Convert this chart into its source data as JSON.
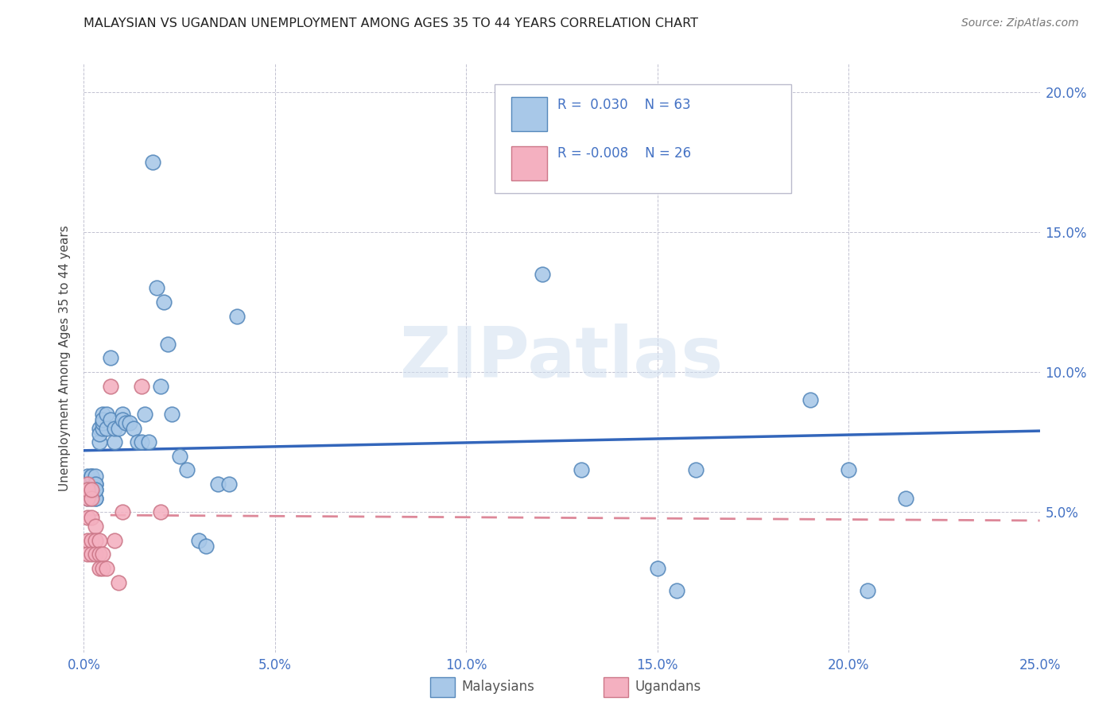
{
  "title": "MALAYSIAN VS UGANDAN UNEMPLOYMENT AMONG AGES 35 TO 44 YEARS CORRELATION CHART",
  "source": "Source: ZipAtlas.com",
  "ylabel": "Unemployment Among Ages 35 to 44 years",
  "xlim": [
    0.0,
    0.25
  ],
  "ylim": [
    0.0,
    0.21
  ],
  "xticks": [
    0.0,
    0.05,
    0.1,
    0.15,
    0.2,
    0.25
  ],
  "yticks": [
    0.0,
    0.05,
    0.1,
    0.15,
    0.2
  ],
  "ytick_labels": [
    "",
    "5.0%",
    "10.0%",
    "15.0%",
    "20.0%"
  ],
  "xtick_labels": [
    "0.0%",
    "5.0%",
    "10.0%",
    "15.0%",
    "20.0%",
    "25.0%"
  ],
  "malaysia_color": "#a8c8e8",
  "malaysia_edge": "#5588bb",
  "uganda_color": "#f4b0c0",
  "uganda_edge": "#cc7788",
  "blue_text": "#4472c4",
  "trend_blue": "#3366bb",
  "trend_pink": "#dd8899",
  "watermark_color": "#d0dff0",
  "malaysia_x": [
    0.001,
    0.001,
    0.001,
    0.001,
    0.002,
    0.002,
    0.002,
    0.002,
    0.002,
    0.002,
    0.002,
    0.003,
    0.003,
    0.003,
    0.003,
    0.003,
    0.003,
    0.003,
    0.004,
    0.004,
    0.004,
    0.005,
    0.005,
    0.005,
    0.005,
    0.006,
    0.006,
    0.007,
    0.007,
    0.008,
    0.008,
    0.009,
    0.01,
    0.01,
    0.011,
    0.012,
    0.013,
    0.014,
    0.015,
    0.016,
    0.017,
    0.018,
    0.019,
    0.02,
    0.021,
    0.022,
    0.023,
    0.025,
    0.027,
    0.03,
    0.032,
    0.035,
    0.038,
    0.04,
    0.12,
    0.13,
    0.15,
    0.155,
    0.16,
    0.19,
    0.2,
    0.205,
    0.215
  ],
  "malaysia_y": [
    0.06,
    0.063,
    0.055,
    0.058,
    0.06,
    0.063,
    0.055,
    0.058,
    0.06,
    0.063,
    0.058,
    0.055,
    0.06,
    0.063,
    0.058,
    0.055,
    0.06,
    0.058,
    0.075,
    0.08,
    0.078,
    0.08,
    0.085,
    0.082,
    0.083,
    0.085,
    0.08,
    0.105,
    0.083,
    0.075,
    0.08,
    0.08,
    0.085,
    0.083,
    0.082,
    0.082,
    0.08,
    0.075,
    0.075,
    0.085,
    0.075,
    0.175,
    0.13,
    0.095,
    0.125,
    0.11,
    0.085,
    0.07,
    0.065,
    0.04,
    0.038,
    0.06,
    0.06,
    0.12,
    0.135,
    0.065,
    0.03,
    0.022,
    0.065,
    0.09,
    0.065,
    0.022,
    0.055
  ],
  "uganda_x": [
    0.001,
    0.001,
    0.001,
    0.001,
    0.001,
    0.001,
    0.002,
    0.002,
    0.002,
    0.002,
    0.002,
    0.003,
    0.003,
    0.003,
    0.004,
    0.004,
    0.004,
    0.005,
    0.005,
    0.006,
    0.007,
    0.008,
    0.009,
    0.01,
    0.015,
    0.02
  ],
  "uganda_y": [
    0.055,
    0.06,
    0.058,
    0.048,
    0.04,
    0.035,
    0.055,
    0.058,
    0.048,
    0.04,
    0.035,
    0.045,
    0.04,
    0.035,
    0.04,
    0.035,
    0.03,
    0.035,
    0.03,
    0.03,
    0.095,
    0.04,
    0.025,
    0.05,
    0.095,
    0.05
  ],
  "malaysia_trend_x0": 0.0,
  "malaysia_trend_x1": 0.25,
  "malaysia_trend_y0": 0.072,
  "malaysia_trend_y1": 0.079,
  "uganda_trend_x0": 0.0,
  "uganda_trend_x1": 0.25,
  "uganda_trend_y0": 0.049,
  "uganda_trend_y1": 0.047
}
